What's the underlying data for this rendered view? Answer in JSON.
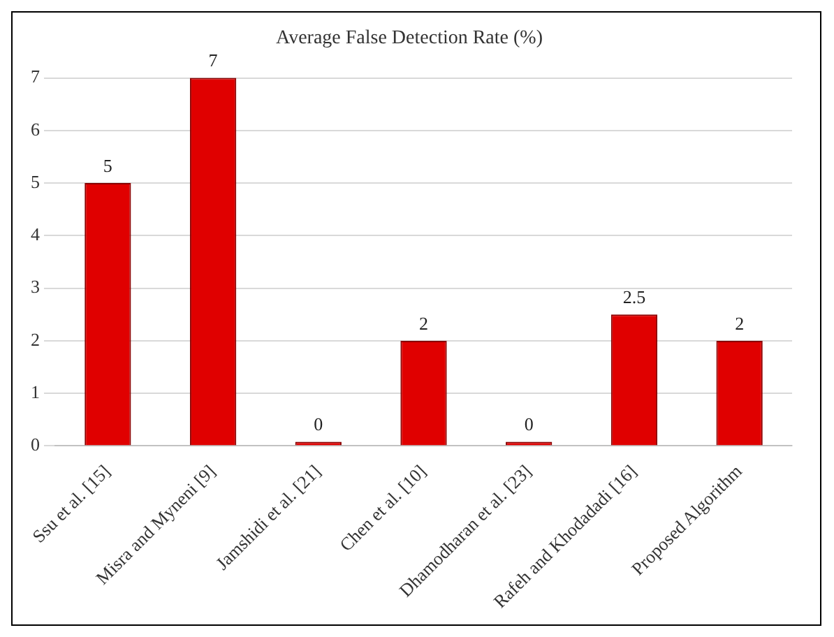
{
  "chart_data": {
    "type": "bar",
    "title": "Average False Detection Rate (%)",
    "categories": [
      "Ssu et al. [15]",
      "Misra and Myneni [9]",
      "Jamshidi et al. [21]",
      "Chen et al. [10]",
      "Dhamodharan et al. [23]",
      "Rafeh and Khodadadi [16]",
      "Proposed Algorithm"
    ],
    "values": [
      5,
      7,
      0,
      2,
      0,
      2.5,
      2
    ],
    "color": "#e00000",
    "ylim": [
      0,
      7
    ],
    "yticks": [
      0,
      1,
      2,
      3,
      4,
      5,
      6,
      7
    ],
    "grid": "y",
    "legend": false,
    "data_labels": true
  }
}
